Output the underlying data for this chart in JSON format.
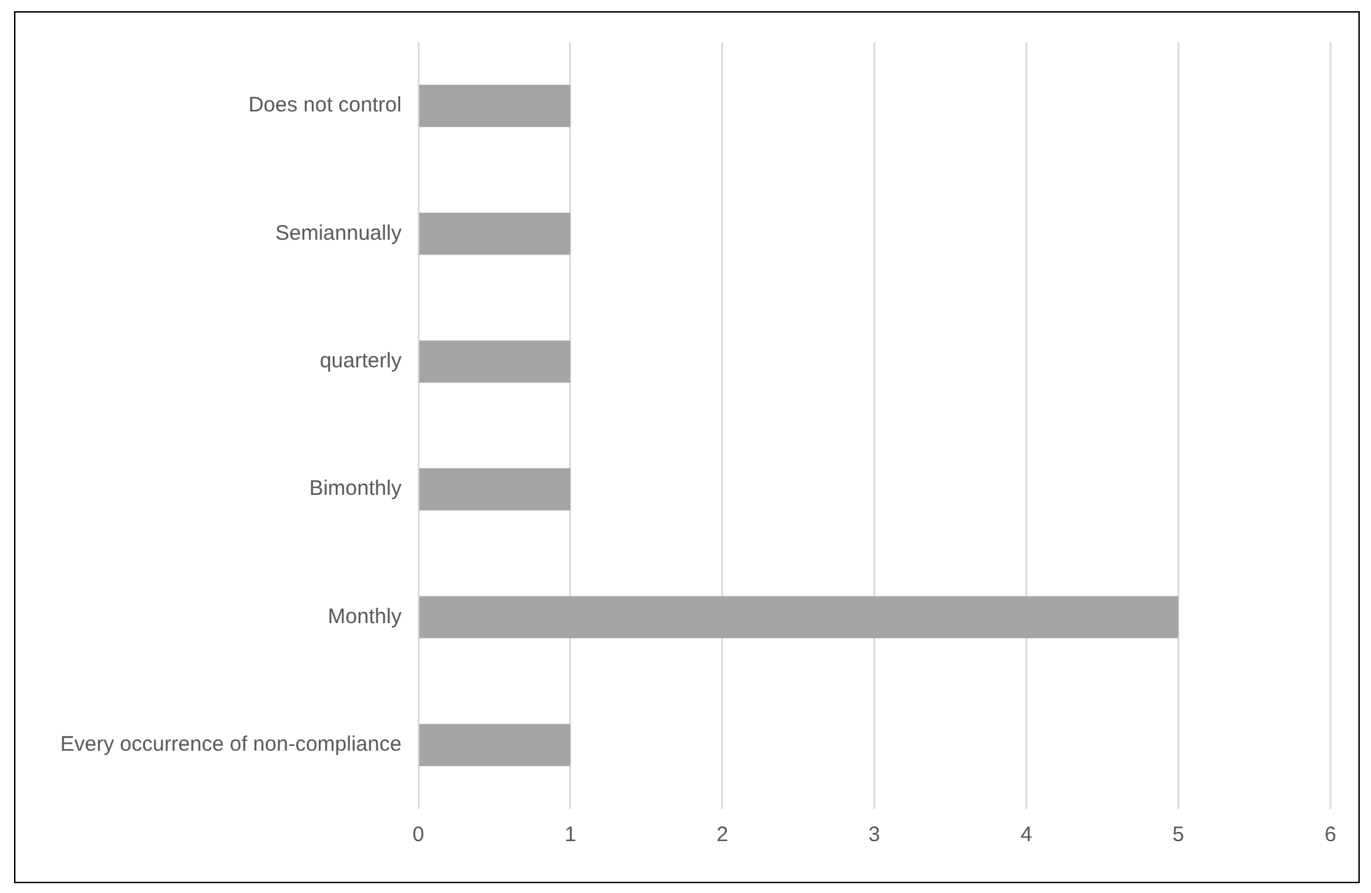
{
  "chart_data": {
    "type": "bar",
    "orientation": "horizontal",
    "categories": [
      "Does not control",
      "Semiannually",
      "quarterly",
      "Bimonthly",
      "Monthly",
      "Every occurrence of non-compliance"
    ],
    "values": [
      1,
      1,
      1,
      1,
      5,
      1
    ],
    "color": "#a5a5a5",
    "xlim": [
      0,
      6
    ],
    "xticks": [
      0,
      1,
      2,
      3,
      4,
      5,
      6
    ],
    "grid": "x",
    "legend": false
  }
}
